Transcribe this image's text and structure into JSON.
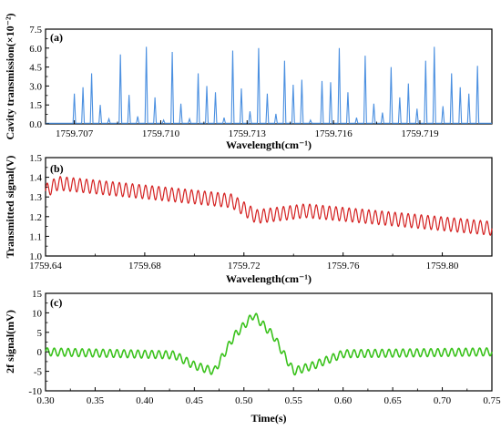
{
  "chart_data": [
    {
      "panel_label": "(a)",
      "type": "line",
      "xlabel": "Wavelength(cm⁻¹)",
      "ylabel": "Cavity transmission(×10⁻²)",
      "xlim": [
        1759.706,
        1759.7215
      ],
      "ylim": [
        0.0,
        7.5
      ],
      "xticks": [
        1759.707,
        1759.71,
        1759.713,
        1759.716,
        1759.719
      ],
      "xtick_labels": [
        "1759.707",
        "1759.710",
        "1759.713",
        "1759.716",
        "1759.719"
      ],
      "yticks": [
        0.0,
        1.5,
        3.0,
        4.5,
        6.0,
        7.5
      ],
      "ytick_labels": [
        "0.0",
        "1.5",
        "3.0",
        "4.5",
        "6.0",
        "7.5"
      ],
      "line_color": "#4a8fe0",
      "peaks": {
        "x": [
          1759.707,
          1759.7073,
          1759.7076,
          1759.7079,
          1759.7082,
          1759.7086,
          1759.7089,
          1759.7092,
          1759.7095,
          1759.7098,
          1759.7101,
          1759.7104,
          1759.7107,
          1759.711,
          1759.7113,
          1759.7116,
          1759.7119,
          1759.7122,
          1759.7125,
          1759.7128,
          1759.7131,
          1759.7134,
          1759.7137,
          1759.714,
          1759.7143,
          1759.7146,
          1759.7149,
          1759.7152,
          1759.7156,
          1759.7159,
          1759.7162,
          1759.7165,
          1759.7168,
          1759.7171,
          1759.7174,
          1759.7177,
          1759.718,
          1759.7183,
          1759.7186,
          1759.7189,
          1759.7192,
          1759.7195,
          1759.7198,
          1759.7201,
          1759.7204,
          1759.7207,
          1759.721
        ],
        "y": [
          2.4,
          2.9,
          4.0,
          1.5,
          0.4,
          5.5,
          2.3,
          0.6,
          6.1,
          2.1,
          0.3,
          5.7,
          1.6,
          0.4,
          4.0,
          3.0,
          2.5,
          0.5,
          5.8,
          2.8,
          1.0,
          6.0,
          2.4,
          0.8,
          5.0,
          3.1,
          3.5,
          0.3,
          3.4,
          3.3,
          6.0,
          2.5,
          0.5,
          5.4,
          1.6,
          0.9,
          4.5,
          2.1,
          3.2,
          1.2,
          5.0,
          6.1,
          1.4,
          4.0,
          2.9,
          2.4,
          4.6
        ],
        "baseline": 0.05
      }
    },
    {
      "panel_label": "(b)",
      "type": "line",
      "xlabel": "Wavelength(cm⁻¹)",
      "ylabel": "Transmitted signal(V)",
      "xlim": [
        1759.64,
        1759.82
      ],
      "ylim": [
        1.0,
        1.5
      ],
      "xticks": [
        1759.64,
        1759.68,
        1759.72,
        1759.76,
        1759.8
      ],
      "xtick_labels": [
        "1759.64",
        "1759.68",
        "1759.72",
        "1759.76",
        "1759.80"
      ],
      "yticks": [
        1.0,
        1.1,
        1.2,
        1.3,
        1.4,
        1.5
      ],
      "ytick_labels": [
        "1.0",
        "1.1",
        "1.2",
        "1.3",
        "1.4",
        "1.5"
      ],
      "line_color": "#d42020",
      "oscillation_cycles": 68,
      "oscillation_amplitude": 0.035,
      "trend": {
        "x": [
          1759.64,
          1759.645,
          1759.7,
          1759.715,
          1759.725,
          1759.745,
          1759.82
        ],
        "y": [
          1.33,
          1.37,
          1.3,
          1.28,
          1.2,
          1.23,
          1.14
        ]
      }
    },
    {
      "panel_label": "(c)",
      "type": "line",
      "xlabel": "Time(s)",
      "ylabel": "2f signal(mV)",
      "xlim": [
        0.3,
        0.75
      ],
      "ylim": [
        -10,
        15
      ],
      "xticks": [
        0.3,
        0.35,
        0.4,
        0.45,
        0.5,
        0.55,
        0.6,
        0.65,
        0.7,
        0.75
      ],
      "xtick_labels": [
        "0.30",
        "0.35",
        "0.40",
        "0.45",
        "0.50",
        "0.55",
        "0.60",
        "0.65",
        "0.70",
        "0.75"
      ],
      "yticks": [
        -10,
        -5,
        0,
        5,
        10,
        15
      ],
      "ytick_labels": [
        "-10",
        "-5",
        "0",
        "5",
        "10",
        "15"
      ],
      "line_color": "#3ac21c",
      "oscillation_cycles": 64,
      "oscillation_amplitude": 1.0,
      "envelope": {
        "x": [
          0.3,
          0.43,
          0.45,
          0.47,
          0.49,
          0.51,
          0.53,
          0.55,
          0.57,
          0.6,
          0.75
        ],
        "y": [
          0.0,
          -0.8,
          -3.5,
          -5.0,
          4.0,
          9.5,
          4.0,
          -5.0,
          -3.5,
          -0.5,
          0.0
        ]
      }
    }
  ]
}
